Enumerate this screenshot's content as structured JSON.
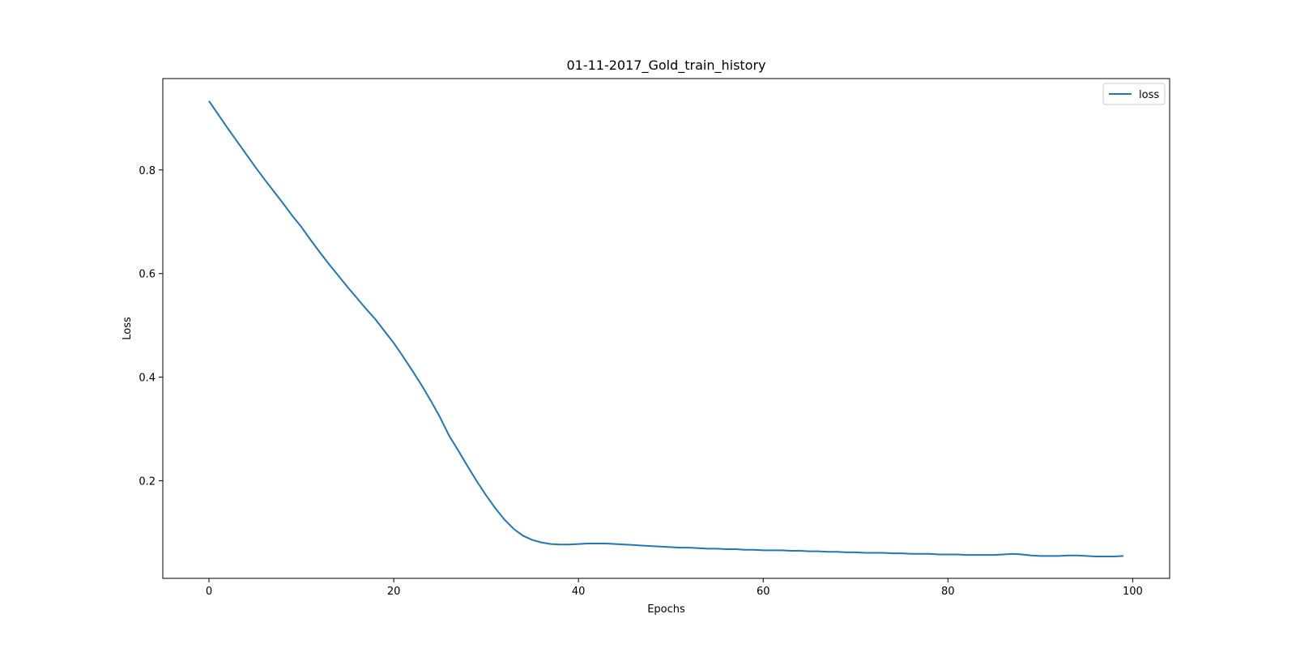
{
  "chart_data": {
    "type": "line",
    "title": "01-11-2017_Gold_train_history",
    "xlabel": "Epochs",
    "ylabel": "Loss",
    "xlim": [
      -5,
      104
    ],
    "ylim": [
      0.0118,
      0.9763
    ],
    "xticks": [
      0,
      20,
      40,
      60,
      80,
      100
    ],
    "yticks": [
      0.2,
      0.4,
      0.6,
      0.8
    ],
    "grid": false,
    "legend_position": "top-right",
    "colors": {
      "series": "#1f77b4",
      "axes": "#000000",
      "background": "#ffffff"
    },
    "series": [
      {
        "name": "loss",
        "x": [
          0,
          1,
          2,
          3,
          4,
          5,
          6,
          7,
          8,
          9,
          10,
          11,
          12,
          13,
          14,
          15,
          16,
          17,
          18,
          19,
          20,
          21,
          22,
          23,
          24,
          25,
          26,
          27,
          28,
          29,
          30,
          31,
          32,
          33,
          34,
          35,
          36,
          37,
          38,
          39,
          40,
          41,
          42,
          43,
          44,
          45,
          46,
          47,
          48,
          49,
          50,
          51,
          52,
          53,
          54,
          55,
          56,
          57,
          58,
          59,
          60,
          61,
          62,
          63,
          64,
          65,
          66,
          67,
          68,
          69,
          70,
          71,
          72,
          73,
          74,
          75,
          76,
          77,
          78,
          79,
          80,
          81,
          82,
          83,
          84,
          85,
          86,
          87,
          88,
          89,
          90,
          91,
          92,
          93,
          94,
          95,
          96,
          97,
          98,
          99
        ],
        "values": [
          0.933,
          0.907,
          0.881,
          0.856,
          0.831,
          0.806,
          0.782,
          0.759,
          0.736,
          0.712,
          0.69,
          0.665,
          0.641,
          0.618,
          0.596,
          0.574,
          0.553,
          0.532,
          0.512,
          0.489,
          0.466,
          0.44,
          0.413,
          0.385,
          0.355,
          0.323,
          0.287,
          0.258,
          0.228,
          0.199,
          0.172,
          0.147,
          0.125,
          0.107,
          0.094,
          0.086,
          0.081,
          0.078,
          0.077,
          0.077,
          0.078,
          0.079,
          0.079,
          0.079,
          0.078,
          0.077,
          0.076,
          0.075,
          0.074,
          0.073,
          0.072,
          0.071,
          0.071,
          0.07,
          0.069,
          0.069,
          0.068,
          0.068,
          0.067,
          0.067,
          0.066,
          0.066,
          0.066,
          0.065,
          0.065,
          0.064,
          0.064,
          0.063,
          0.063,
          0.062,
          0.062,
          0.061,
          0.061,
          0.061,
          0.06,
          0.06,
          0.059,
          0.059,
          0.059,
          0.058,
          0.058,
          0.058,
          0.057,
          0.057,
          0.057,
          0.057,
          0.058,
          0.059,
          0.058,
          0.056,
          0.055,
          0.055,
          0.055,
          0.056,
          0.056,
          0.055,
          0.054,
          0.054,
          0.054,
          0.055
        ]
      }
    ]
  }
}
